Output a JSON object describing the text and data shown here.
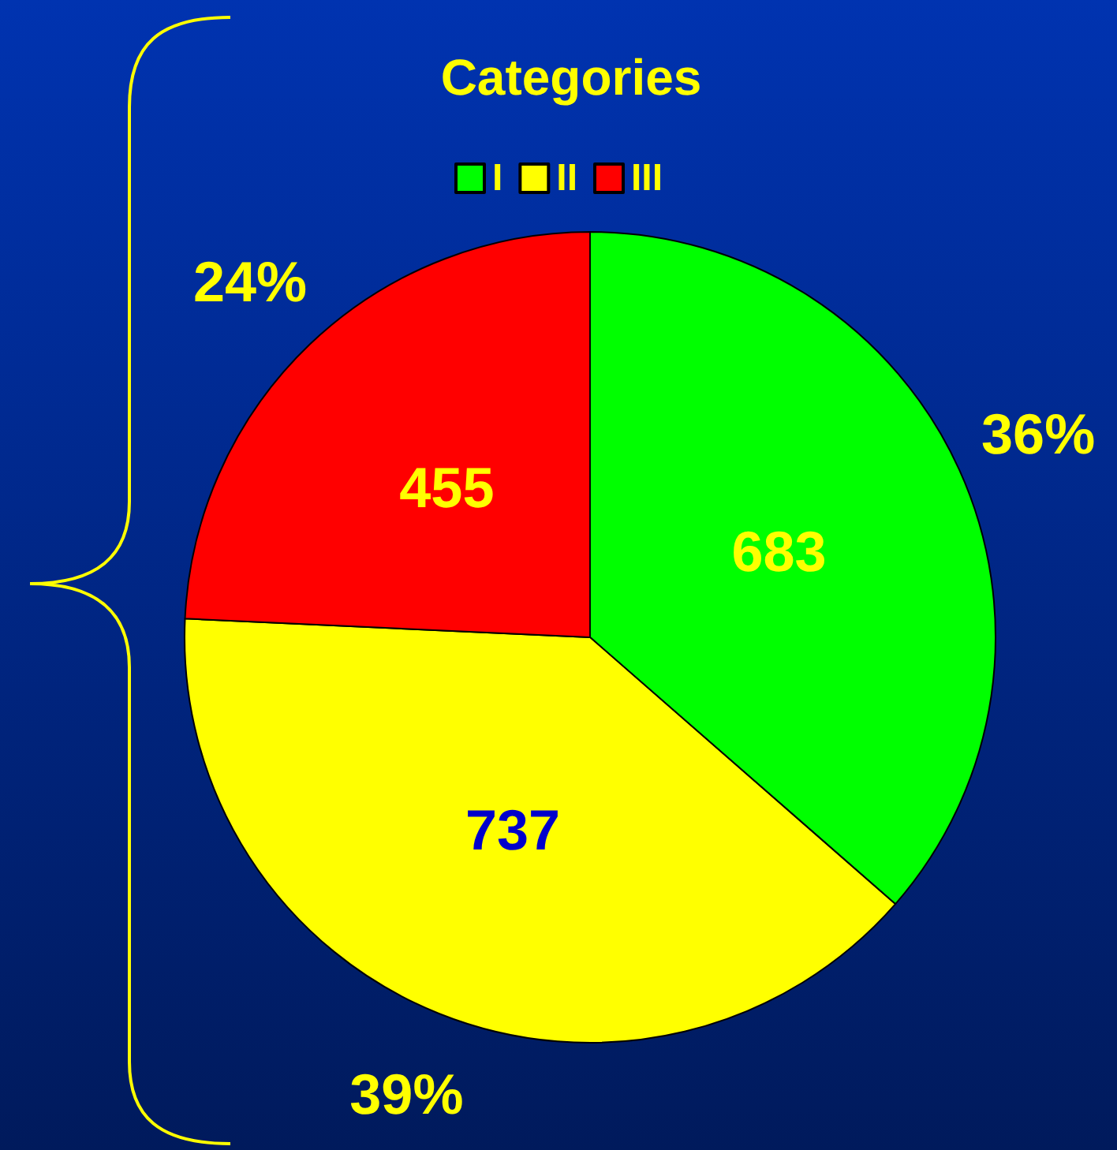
{
  "chart_data": {
    "type": "pie",
    "legend_title": "Categories",
    "categories": [
      "I",
      "II",
      "III"
    ],
    "values": [
      683,
      737,
      455
    ],
    "colors": [
      "#00ff00",
      "#ffff00",
      "#ff0000"
    ],
    "data_labels": true,
    "legend": "top",
    "annotations": [
      "36%",
      "39%",
      "24%"
    ]
  }
}
